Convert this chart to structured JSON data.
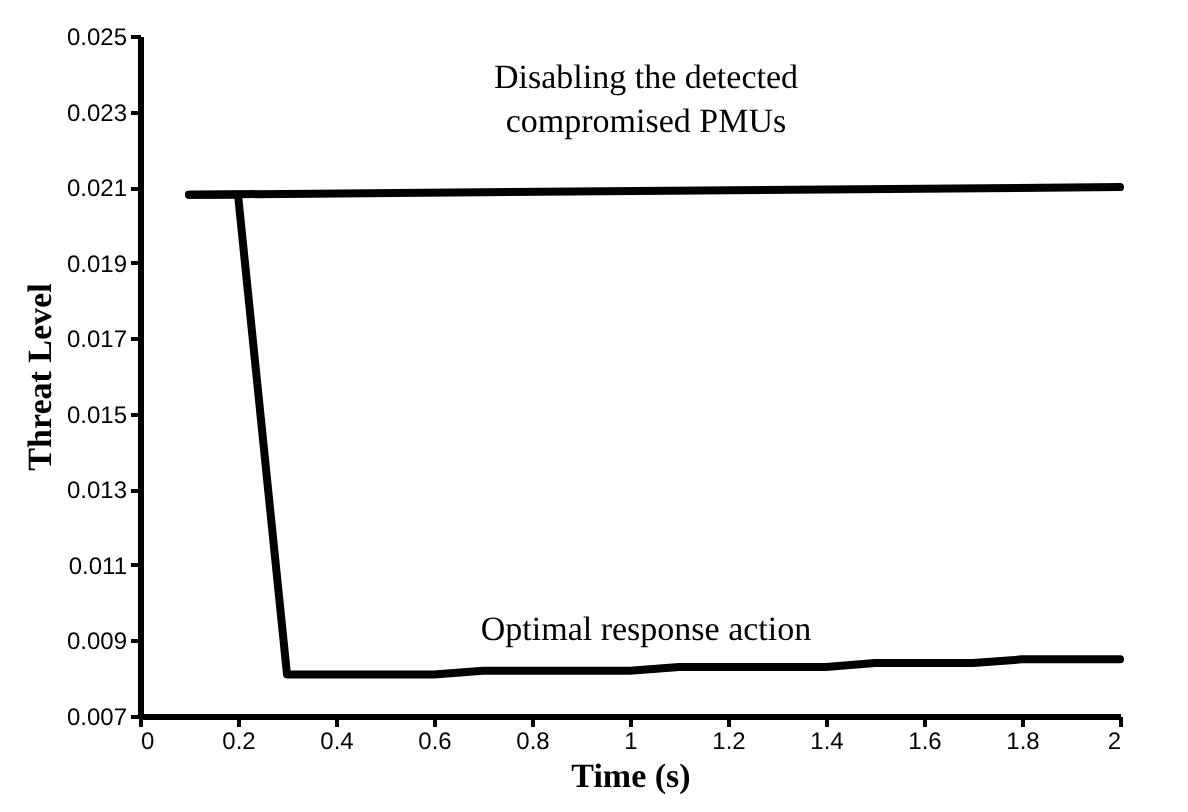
{
  "chart_data": {
    "type": "line",
    "xlabel": "Time (s)",
    "ylabel": "Threat Level",
    "xlim": [
      0,
      2
    ],
    "xticks": [
      0,
      0.2,
      0.4,
      0.6,
      0.8,
      1,
      1.2,
      1.4,
      1.6,
      1.8,
      2
    ],
    "ylim": [
      0.007,
      0.025
    ],
    "yticks": [
      0.007,
      0.009,
      0.011,
      0.013,
      0.015,
      0.017,
      0.019,
      0.021,
      0.023,
      0.025
    ],
    "grid": false,
    "legend": false,
    "marker": "none",
    "line_style": "solid",
    "series": [
      {
        "color": "#000000",
        "x": [
          0.1,
          2
        ],
        "values": [
          0.0208,
          0.021
        ]
      },
      {
        "color": "#000000",
        "x": [
          0.1,
          0.2,
          0.3,
          0.6,
          0.7,
          1.0,
          1.1,
          1.4,
          1.5,
          1.7,
          1.8,
          2
        ],
        "values": [
          0.0208,
          0.0208,
          0.0081,
          0.0081,
          0.0082,
          0.0082,
          0.0083,
          0.0083,
          0.0084,
          0.0084,
          0.0085,
          0.0085
        ]
      }
    ],
    "annotations": [
      "Disabling the detected\ncompromised PMUs",
      "Optimal response action"
    ]
  }
}
